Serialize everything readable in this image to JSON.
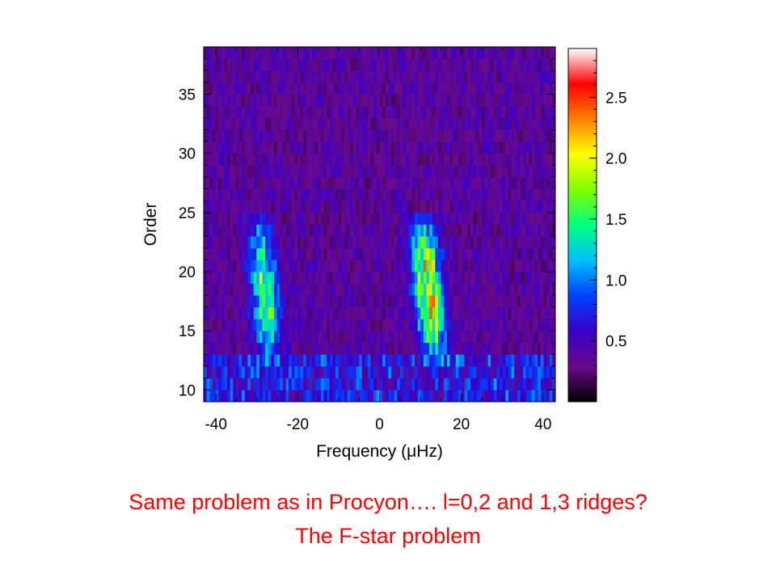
{
  "chart_data": {
    "type": "heatmap",
    "title": "",
    "xlabel": "Frequency (μHz)",
    "ylabel": "Order",
    "xlim": [
      -43,
      43
    ],
    "ylim": [
      9,
      39
    ],
    "xticks": [
      -40,
      -20,
      0,
      20,
      40
    ],
    "yticks": [
      10,
      15,
      20,
      25,
      30,
      35
    ],
    "colorbar": {
      "range": [
        0.0,
        2.9
      ],
      "ticks": [
        0.5,
        1.0,
        1.5,
        2.0,
        2.5
      ],
      "tick_labels": [
        "0.5",
        "1.0",
        "1.5",
        "2.0",
        "2.5"
      ],
      "colormap": [
        "#000000",
        "#6a0a8a",
        "#3a00c8",
        "#0040ff",
        "#00c0ff",
        "#00ff80",
        "#80ff00",
        "#ffff00",
        "#ff8000",
        "#ff0000",
        "#ffffff"
      ]
    },
    "ridges": [
      {
        "center_frequency": -28,
        "order_range": [
          12,
          24
        ],
        "peak_value": 2.0
      },
      {
        "center_frequency": 12,
        "order_range": [
          12,
          24
        ],
        "peak_value": 2.8
      }
    ],
    "background_level": 0.25
  },
  "caption": {
    "line1": "Same problem as in Procyon…. l=0,2 and 1,3 ridges?",
    "line2": "The F-star problem"
  }
}
